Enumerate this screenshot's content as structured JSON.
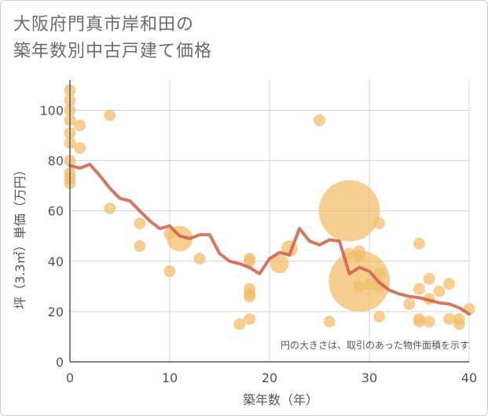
{
  "chart_data": {
    "type": "scatter",
    "title_line1": "大阪府門真市岸和田の",
    "title_line2": "築年数別中古戸建て価格",
    "xlabel": "築年数（年）",
    "ylabel": "坪（3.3㎡）単価（万円）",
    "note": "円の大きさは、取引のあった物件面積を示す",
    "xlim": [
      0,
      40
    ],
    "ylim": [
      0,
      112
    ],
    "x_ticks": [
      "0",
      "10",
      "20",
      "30",
      "40"
    ],
    "y_ticks": [
      "0",
      "20",
      "40",
      "60",
      "80",
      "100"
    ],
    "colors": {
      "bubble": "#f3bd6a",
      "line": "#d4654f",
      "grid": "#c9d6e6"
    },
    "bubbles": [
      {
        "x": 0,
        "y": 108,
        "s": 1
      },
      {
        "x": 0,
        "y": 104,
        "s": 1
      },
      {
        "x": 0,
        "y": 100,
        "s": 1
      },
      {
        "x": 0,
        "y": 96,
        "s": 1
      },
      {
        "x": 0,
        "y": 91,
        "s": 1
      },
      {
        "x": 0,
        "y": 87,
        "s": 1
      },
      {
        "x": 0,
        "y": 80,
        "s": 1
      },
      {
        "x": 0,
        "y": 75,
        "s": 1
      },
      {
        "x": 0,
        "y": 73,
        "s": 1
      },
      {
        "x": 0,
        "y": 71,
        "s": 1
      },
      {
        "x": 1,
        "y": 94,
        "s": 1
      },
      {
        "x": 1,
        "y": 85,
        "s": 1
      },
      {
        "x": 4,
        "y": 98,
        "s": 1
      },
      {
        "x": 4,
        "y": 61,
        "s": 1
      },
      {
        "x": 7,
        "y": 55,
        "s": 1
      },
      {
        "x": 7,
        "y": 46,
        "s": 1
      },
      {
        "x": 10,
        "y": 51,
        "s": 1
      },
      {
        "x": 10,
        "y": 36,
        "s": 1
      },
      {
        "x": 11,
        "y": 49,
        "s": 2.2
      },
      {
        "x": 13,
        "y": 41,
        "s": 1
      },
      {
        "x": 17,
        "y": 15,
        "s": 1
      },
      {
        "x": 18,
        "y": 41,
        "s": 1
      },
      {
        "x": 18,
        "y": 40,
        "s": 1
      },
      {
        "x": 18,
        "y": 29,
        "s": 1
      },
      {
        "x": 18,
        "y": 27,
        "s": 1
      },
      {
        "x": 18,
        "y": 26,
        "s": 1
      },
      {
        "x": 18,
        "y": 17,
        "s": 1
      },
      {
        "x": 21,
        "y": 39,
        "s": 1.6
      },
      {
        "x": 22,
        "y": 45,
        "s": 1.4
      },
      {
        "x": 25,
        "y": 96,
        "s": 1
      },
      {
        "x": 26,
        "y": 16,
        "s": 1
      },
      {
        "x": 28,
        "y": 60,
        "s": 5.2
      },
      {
        "x": 28,
        "y": 43,
        "s": 1
      },
      {
        "x": 29,
        "y": 44,
        "s": 1
      },
      {
        "x": 29,
        "y": 42,
        "s": 1
      },
      {
        "x": 29,
        "y": 32,
        "s": 5.2
      },
      {
        "x": 29,
        "y": 30,
        "s": 1
      },
      {
        "x": 30,
        "y": 31,
        "s": 1
      },
      {
        "x": 31,
        "y": 55,
        "s": 1
      },
      {
        "x": 31,
        "y": 35,
        "s": 1
      },
      {
        "x": 31,
        "y": 30,
        "s": 1
      },
      {
        "x": 31,
        "y": 18,
        "s": 1
      },
      {
        "x": 34,
        "y": 23,
        "s": 1
      },
      {
        "x": 35,
        "y": 47,
        "s": 1
      },
      {
        "x": 35,
        "y": 29,
        "s": 1
      },
      {
        "x": 35,
        "y": 17,
        "s": 1
      },
      {
        "x": 35,
        "y": 16,
        "s": 1
      },
      {
        "x": 36,
        "y": 33,
        "s": 1
      },
      {
        "x": 36,
        "y": 25,
        "s": 1
      },
      {
        "x": 36,
        "y": 16,
        "s": 1
      },
      {
        "x": 37,
        "y": 28,
        "s": 1
      },
      {
        "x": 38,
        "y": 31,
        "s": 1
      },
      {
        "x": 38,
        "y": 17,
        "s": 1
      },
      {
        "x": 39,
        "y": 17,
        "s": 1
      },
      {
        "x": 39,
        "y": 15,
        "s": 1
      },
      {
        "x": 40,
        "y": 21,
        "s": 1
      }
    ],
    "line": {
      "x": [
        0,
        1,
        2,
        3,
        4,
        5,
        6,
        7,
        8,
        9,
        10,
        11,
        12,
        13,
        14,
        15,
        16,
        17,
        18,
        19,
        20,
        21,
        22,
        23,
        24,
        25,
        26,
        27,
        28,
        29,
        30,
        31,
        32,
        33,
        34,
        35,
        36,
        37,
        38,
        39,
        40
      ],
      "y": [
        78,
        77,
        78.5,
        74,
        69,
        65,
        64,
        60,
        56,
        53,
        54,
        50,
        49,
        50.5,
        50.5,
        43,
        40,
        39,
        37.5,
        35,
        41,
        43.5,
        42.5,
        53,
        48,
        46.5,
        48.5,
        48,
        35,
        37.5,
        36,
        31.5,
        28.5,
        27,
        26,
        25.5,
        24.5,
        23.5,
        23,
        21.5,
        19
      ]
    }
  }
}
